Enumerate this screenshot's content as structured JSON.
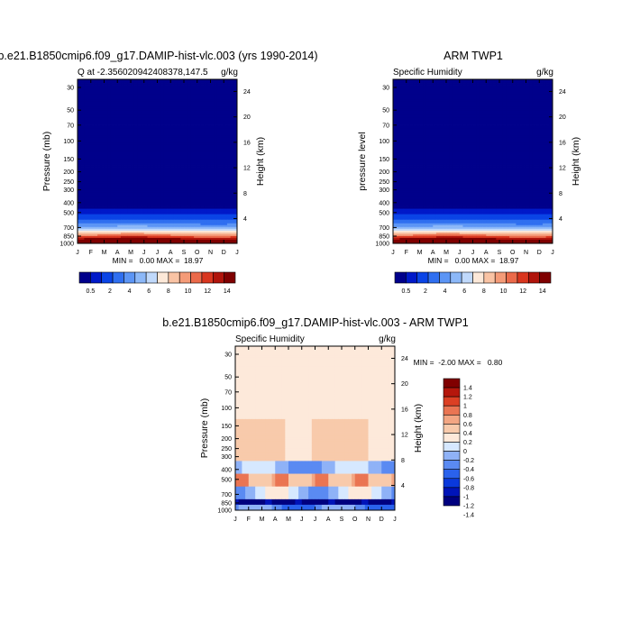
{
  "colorbar_levels": [
    "0.5",
    "2",
    "4",
    "6",
    "8",
    "10",
    "12",
    "14"
  ],
  "colors": {
    "abs": [
      "#00008b",
      "#0019c9",
      "#0a44e6",
      "#2f6ff0",
      "#5c95f5",
      "#8cb8f8",
      "#c0d9fb",
      "#fce8d8",
      "#f9c3a4",
      "#f49b78",
      "#eb6a4a",
      "#d9361f",
      "#b0140b",
      "#7f0000"
    ],
    "diff": [
      "#00007f",
      "#0014b8",
      "#0a39dc",
      "#2a62ec",
      "#5a8af2",
      "#8fb2f7",
      "#d6e8ff",
      "#fde9da",
      "#f8caab",
      "#f3a683",
      "#ea7553",
      "#dc4024",
      "#b5170c",
      "#800000"
    ]
  },
  "chart_data": [
    {
      "type": "heatmap",
      "title": "b.e21.B1850cmip6.f09_g17.DAMIP-hist-vlc.003 (yrs 1990-2014)",
      "left_label": "Q at -2.356020942408378,147.5",
      "right_label": "g/kg",
      "ylabel": "Pressure (mb)",
      "ylabel_right": "Height (km)",
      "x": [
        "J",
        "F",
        "M",
        "A",
        "M",
        "J",
        "J",
        "A",
        "S",
        "O",
        "N",
        "D",
        "J"
      ],
      "y_pressure_ticks": [
        "30",
        "50",
        "70",
        "100",
        "150",
        "200",
        "250",
        "300",
        "400",
        "500",
        "700",
        "850",
        "1000"
      ],
      "y_height_ticks": [
        "4",
        "8",
        "12",
        "16",
        "20",
        "24"
      ],
      "stats": "MIN =   0.00 MAX =  18.97",
      "min": 0.0,
      "max": 18.97,
      "colorbar_levels": [
        0.5,
        2,
        4,
        6,
        8,
        10,
        12,
        14
      ]
    },
    {
      "type": "heatmap",
      "title": "ARM TWP1",
      "left_label": "Specific Humidity",
      "right_label": "g/kg",
      "ylabel": "pressure level",
      "ylabel_right": "Height (km)",
      "x": [
        "J",
        "F",
        "M",
        "A",
        "M",
        "J",
        "J",
        "A",
        "S",
        "O",
        "N",
        "D",
        "J"
      ],
      "y_pressure_ticks": [
        "30",
        "50",
        "70",
        "100",
        "150",
        "200",
        "250",
        "300",
        "400",
        "500",
        "700",
        "850",
        "1000"
      ],
      "y_height_ticks": [
        "4",
        "8",
        "12",
        "16",
        "20",
        "24"
      ],
      "stats": "MIN =   0.00 MAX =  18.97",
      "min": 0.0,
      "max": 18.97,
      "colorbar_levels": [
        0.5,
        2,
        4,
        6,
        8,
        10,
        12,
        14
      ]
    },
    {
      "type": "heatmap",
      "title": "b.e21.B1850cmip6.f09_g17.DAMIP-hist-vlc.003 - ARM TWP1",
      "left_label": "Specific Humidity",
      "right_label": "g/kg",
      "ylabel": "Pressure (mb)",
      "ylabel_right": "Height (km)",
      "x": [
        "J",
        "F",
        "M",
        "A",
        "M",
        "J",
        "J",
        "A",
        "S",
        "O",
        "N",
        "D",
        "J"
      ],
      "y_pressure_ticks": [
        "30",
        "50",
        "70",
        "100",
        "150",
        "200",
        "250",
        "300",
        "400",
        "500",
        "700",
        "850",
        "1000"
      ],
      "y_height_ticks": [
        "4",
        "8",
        "12",
        "16",
        "20",
        "24"
      ],
      "stats": "MIN =  -2.00 MAX =   0.80",
      "min": -2.0,
      "max": 0.8,
      "colorbar_levels": [
        1.4,
        1.2,
        1,
        0.8,
        0.6,
        0.4,
        0.2,
        0,
        -0.2,
        -0.4,
        -0.6,
        -0.8,
        -1,
        -1.2,
        -1.4
      ],
      "colorbar_labels": [
        "1.4",
        "1.2",
        "1",
        "0.8",
        "0.6",
        "0.4",
        "0.2",
        "0",
        "-0.2",
        "-0.4",
        "-0.6",
        "-0.8",
        "-1",
        "-1.2",
        "-1.4"
      ]
    }
  ]
}
